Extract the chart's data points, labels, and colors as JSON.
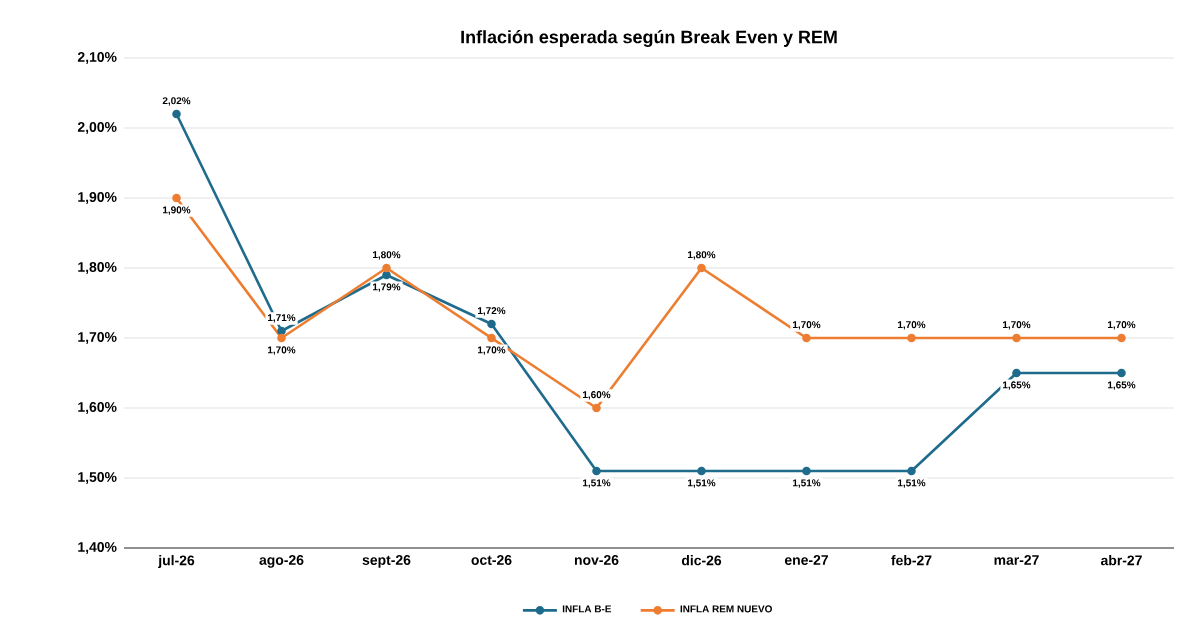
{
  "chart_data": {
    "type": "line",
    "title": "Inflación esperada según Break Even y  REM",
    "categories": [
      "jul-26",
      "ago-26",
      "sept-26",
      "oct-26",
      "nov-26",
      "dic-26",
      "ene-27",
      "feb-27",
      "mar-27",
      "abr-27"
    ],
    "series": [
      {
        "name": "INFLA B-E",
        "color": "#1f6b8c",
        "values": [
          2.02,
          1.71,
          1.79,
          1.72,
          1.51,
          1.51,
          1.51,
          1.51,
          1.65,
          1.65
        ],
        "value_labels": [
          "2,02%",
          "1,71%",
          "1,79%",
          "1,72%",
          "1,51%",
          "1,51%",
          "1,51%",
          "1,51%",
          "1,65%",
          "1,65%"
        ]
      },
      {
        "name": "INFLA REM NUEVO",
        "color": "#ed7d31",
        "values": [
          1.9,
          1.7,
          1.8,
          1.7,
          1.6,
          1.8,
          1.7,
          1.7,
          1.7,
          1.7
        ],
        "value_labels": [
          "1,90%",
          "1,70%",
          "1,80%",
          "1,70%",
          "1,60%",
          "1,80%",
          "1,70%",
          "1,70%",
          "1,70%",
          "1,70%"
        ]
      }
    ],
    "ylim": [
      1.4,
      2.1
    ],
    "yticks": [
      {
        "value": 1.4,
        "label": "1,40%"
      },
      {
        "value": 1.5,
        "label": "1,50%"
      },
      {
        "value": 1.6,
        "label": "1,60%"
      },
      {
        "value": 1.7,
        "label": "1,70%"
      },
      {
        "value": 1.8,
        "label": "1,80%"
      },
      {
        "value": 1.9,
        "label": "1,90%"
      },
      {
        "value": 2.0,
        "label": "2,00%"
      },
      {
        "value": 2.1,
        "label": "2,10%"
      }
    ],
    "grid": "y",
    "legend": "bottom",
    "marker": "circle",
    "line_style": "solid"
  }
}
